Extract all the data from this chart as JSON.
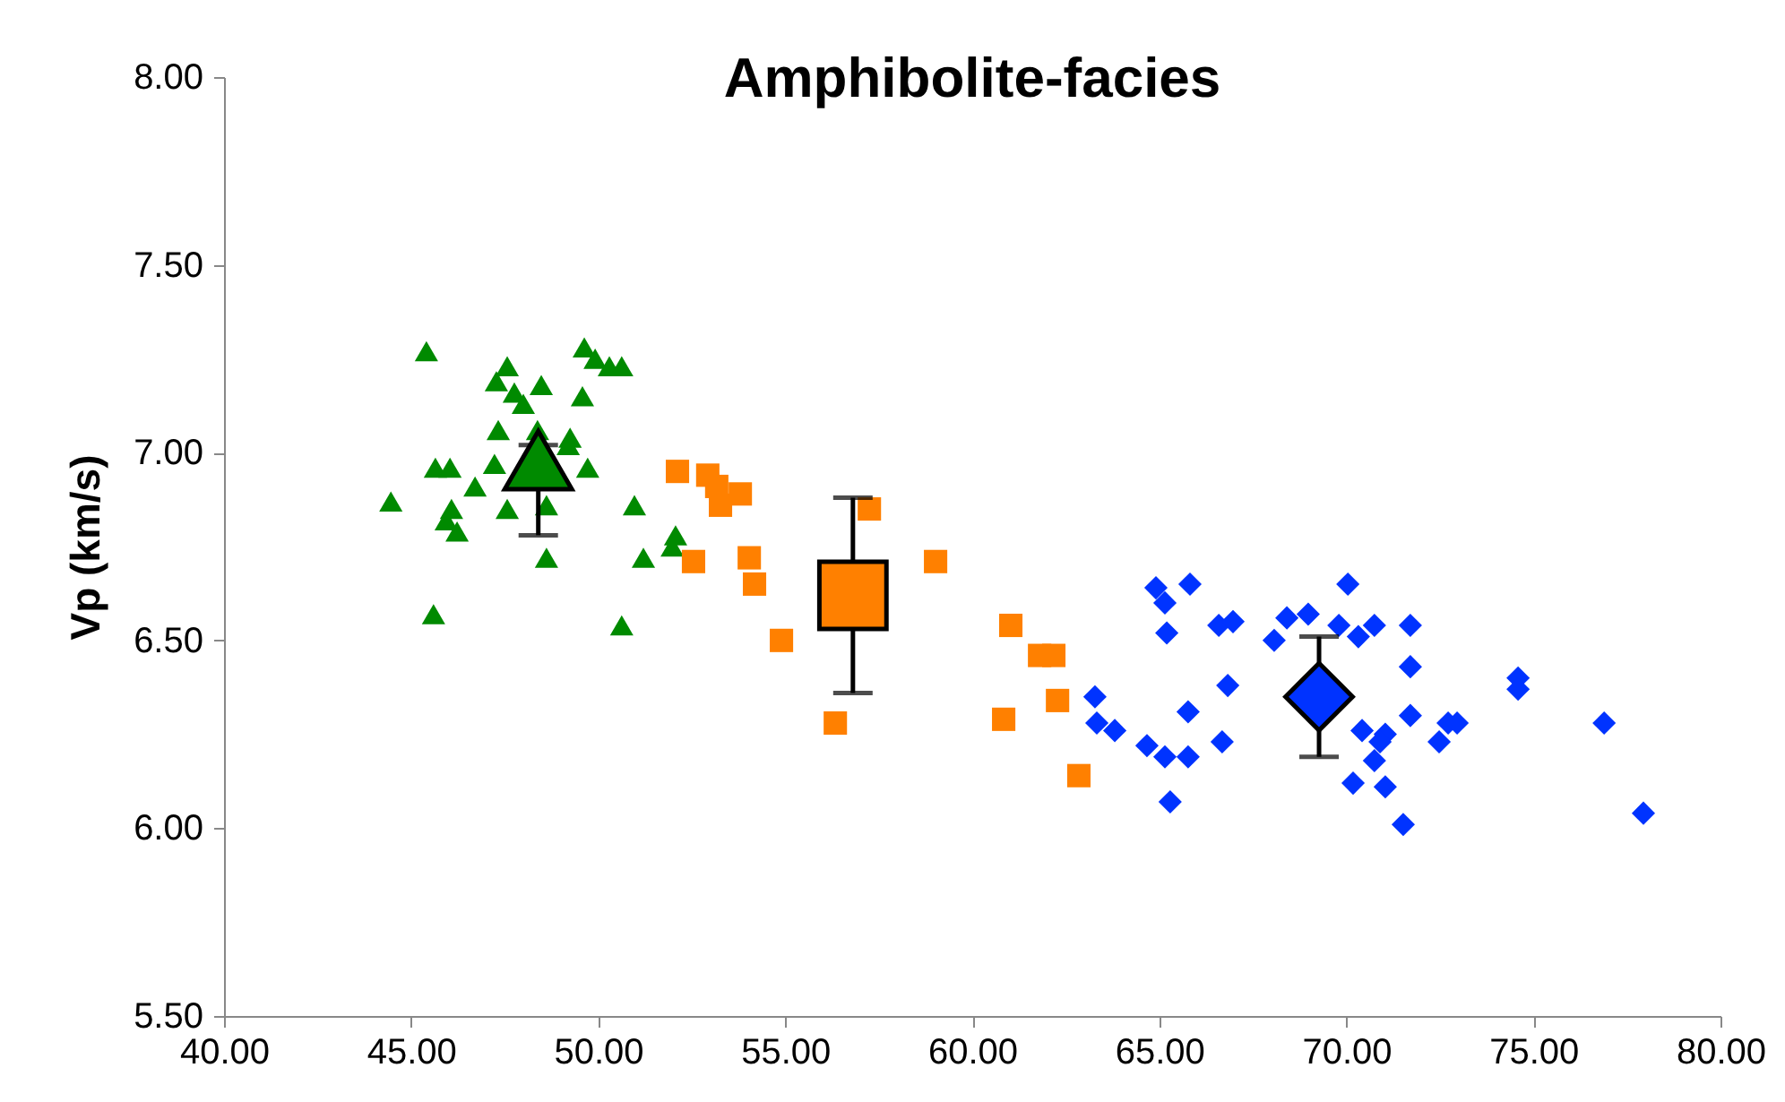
{
  "chart_data": {
    "type": "scatter",
    "title": "Amphibolite-facies",
    "ylabel": "Vp (km/s)",
    "xlim": [
      40,
      80
    ],
    "ylim": [
      5.5,
      8
    ],
    "xticks": [
      {
        "value": 40,
        "label": "40.00"
      },
      {
        "value": 45,
        "label": "45.00"
      },
      {
        "value": 50,
        "label": "50.00"
      },
      {
        "value": 55,
        "label": "55.00"
      },
      {
        "value": 60,
        "label": "60.00"
      },
      {
        "value": 65,
        "label": "65.00"
      },
      {
        "value": 70,
        "label": "70.00"
      },
      {
        "value": 75,
        "label": "75.00"
      },
      {
        "value": 80,
        "label": "80.00"
      }
    ],
    "yticks": [
      {
        "value": 5.5,
        "label": "5.50"
      },
      {
        "value": 6,
        "label": "6.00"
      },
      {
        "value": 6.5,
        "label": "6.50"
      },
      {
        "value": 7,
        "label": "7.00"
      },
      {
        "value": 7.5,
        "label": "7.50"
      },
      {
        "value": 8,
        "label": "8.00"
      }
    ],
    "grid": false,
    "series": [
      {
        "color": "#008a00",
        "marker": "triangle",
        "x": [
          45.41,
          45.65,
          46.04,
          44.46,
          45.94,
          46.23,
          46.08,
          46.71,
          45.6,
          47.28,
          47.57,
          47.76,
          47.33,
          47.23,
          48.0,
          48.48,
          48.38,
          49.25,
          49.63,
          49.92,
          50.3,
          50.63,
          49.58,
          49.72,
          49.2,
          48.62,
          47.57,
          48.62,
          50.97,
          51.21,
          50.63,
          51.98,
          52.07
        ],
        "values": [
          7.27,
          6.96,
          6.96,
          6.87,
          6.82,
          6.79,
          6.85,
          6.91,
          6.57,
          7.19,
          7.23,
          7.16,
          7.06,
          6.97,
          7.13,
          7.18,
          7.06,
          7.04,
          7.28,
          7.25,
          7.23,
          7.23,
          7.15,
          6.96,
          7.02,
          6.86,
          6.85,
          6.72,
          6.86,
          6.72,
          6.54,
          6.75,
          6.78
        ]
      },
      {
        "color": "#ff8000",
        "marker": "square",
        "x": [
          52.12,
          52.93,
          53.17,
          53.27,
          53.8,
          52.55,
          54.04,
          54.18,
          54.9,
          56.34,
          57.25,
          59.02,
          61.03,
          60.84,
          61.8,
          62.18,
          62.28,
          62.85
        ],
        "values": [
          6.95,
          6.94,
          6.91,
          6.86,
          6.89,
          6.71,
          6.72,
          6.65,
          6.5,
          6.28,
          6.85,
          6.71,
          6.54,
          6.29,
          6.46,
          6.46,
          6.34,
          6.14
        ]
      },
      {
        "color": "#0033ff",
        "marker": "diamond",
        "x": [
          64.91,
          65.82,
          65.15,
          65.2,
          66.59,
          66.97,
          68.07,
          68.41,
          68.98,
          70.04,
          69.8,
          70.32,
          70.75,
          71.71,
          71.71,
          63.28,
          63.33,
          63.81,
          66.83,
          65.77,
          64.67,
          65.15,
          65.77,
          66.68,
          65.29,
          71.71,
          74.59,
          74.59,
          76.89,
          77.94,
          70.42,
          71.04,
          72.72,
          72.96,
          72.48,
          70.75,
          70.18,
          71.04,
          71.52,
          70.9
        ],
        "values": [
          6.64,
          6.65,
          6.6,
          6.52,
          6.54,
          6.55,
          6.5,
          6.56,
          6.57,
          6.65,
          6.54,
          6.51,
          6.54,
          6.54,
          6.43,
          6.35,
          6.28,
          6.26,
          6.38,
          6.31,
          6.22,
          6.19,
          6.19,
          6.23,
          6.07,
          6.3,
          6.4,
          6.37,
          6.28,
          6.04,
          6.26,
          6.25,
          6.28,
          6.28,
          6.23,
          6.18,
          6.12,
          6.11,
          6.01,
          6.23
        ]
      },
      {
        "color": "#008a00",
        "marker": "triangle",
        "x": [
          48.4
        ],
        "values": [
          6.98
        ],
        "errors": [
          [
            6.78,
            7.02
          ]
        ]
      },
      {
        "color": "#ff8000",
        "marker": "square",
        "x": [
          56.81
        ],
        "values": [
          6.62
        ],
        "errors": [
          0.26
        ]
      },
      {
        "color": "#0033ff",
        "marker": "diamond",
        "x": [
          69.27
        ],
        "values": [
          6.35
        ],
        "errors": [
          0.16
        ]
      }
    ]
  }
}
